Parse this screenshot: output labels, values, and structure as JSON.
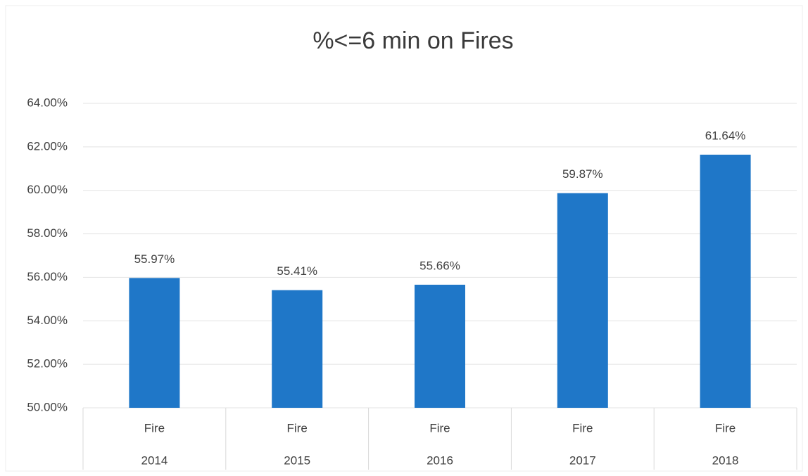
{
  "chart_data": {
    "type": "bar",
    "title": "%<=6 min on Fires",
    "categories": [
      "Fire",
      "Fire",
      "Fire",
      "Fire",
      "Fire"
    ],
    "groups": [
      "2014",
      "2015",
      "2016",
      "2017",
      "2018"
    ],
    "values": [
      55.97,
      55.41,
      55.66,
      59.87,
      61.64
    ],
    "value_labels": [
      "55.97%",
      "55.41%",
      "55.66%",
      "59.87%",
      "61.64%"
    ],
    "color": "#1f77c8",
    "ylim": [
      50,
      64
    ],
    "yticks": [
      {
        "value": 50,
        "label": "50.00%"
      },
      {
        "value": 52,
        "label": "52.00%"
      },
      {
        "value": 54,
        "label": "54.00%"
      },
      {
        "value": 56,
        "label": "56.00%"
      },
      {
        "value": 58,
        "label": "58.00%"
      },
      {
        "value": 60,
        "label": "60.00%"
      },
      {
        "value": 62,
        "label": "62.00%"
      },
      {
        "value": 64,
        "label": "64.00%"
      }
    ],
    "grid": true
  }
}
